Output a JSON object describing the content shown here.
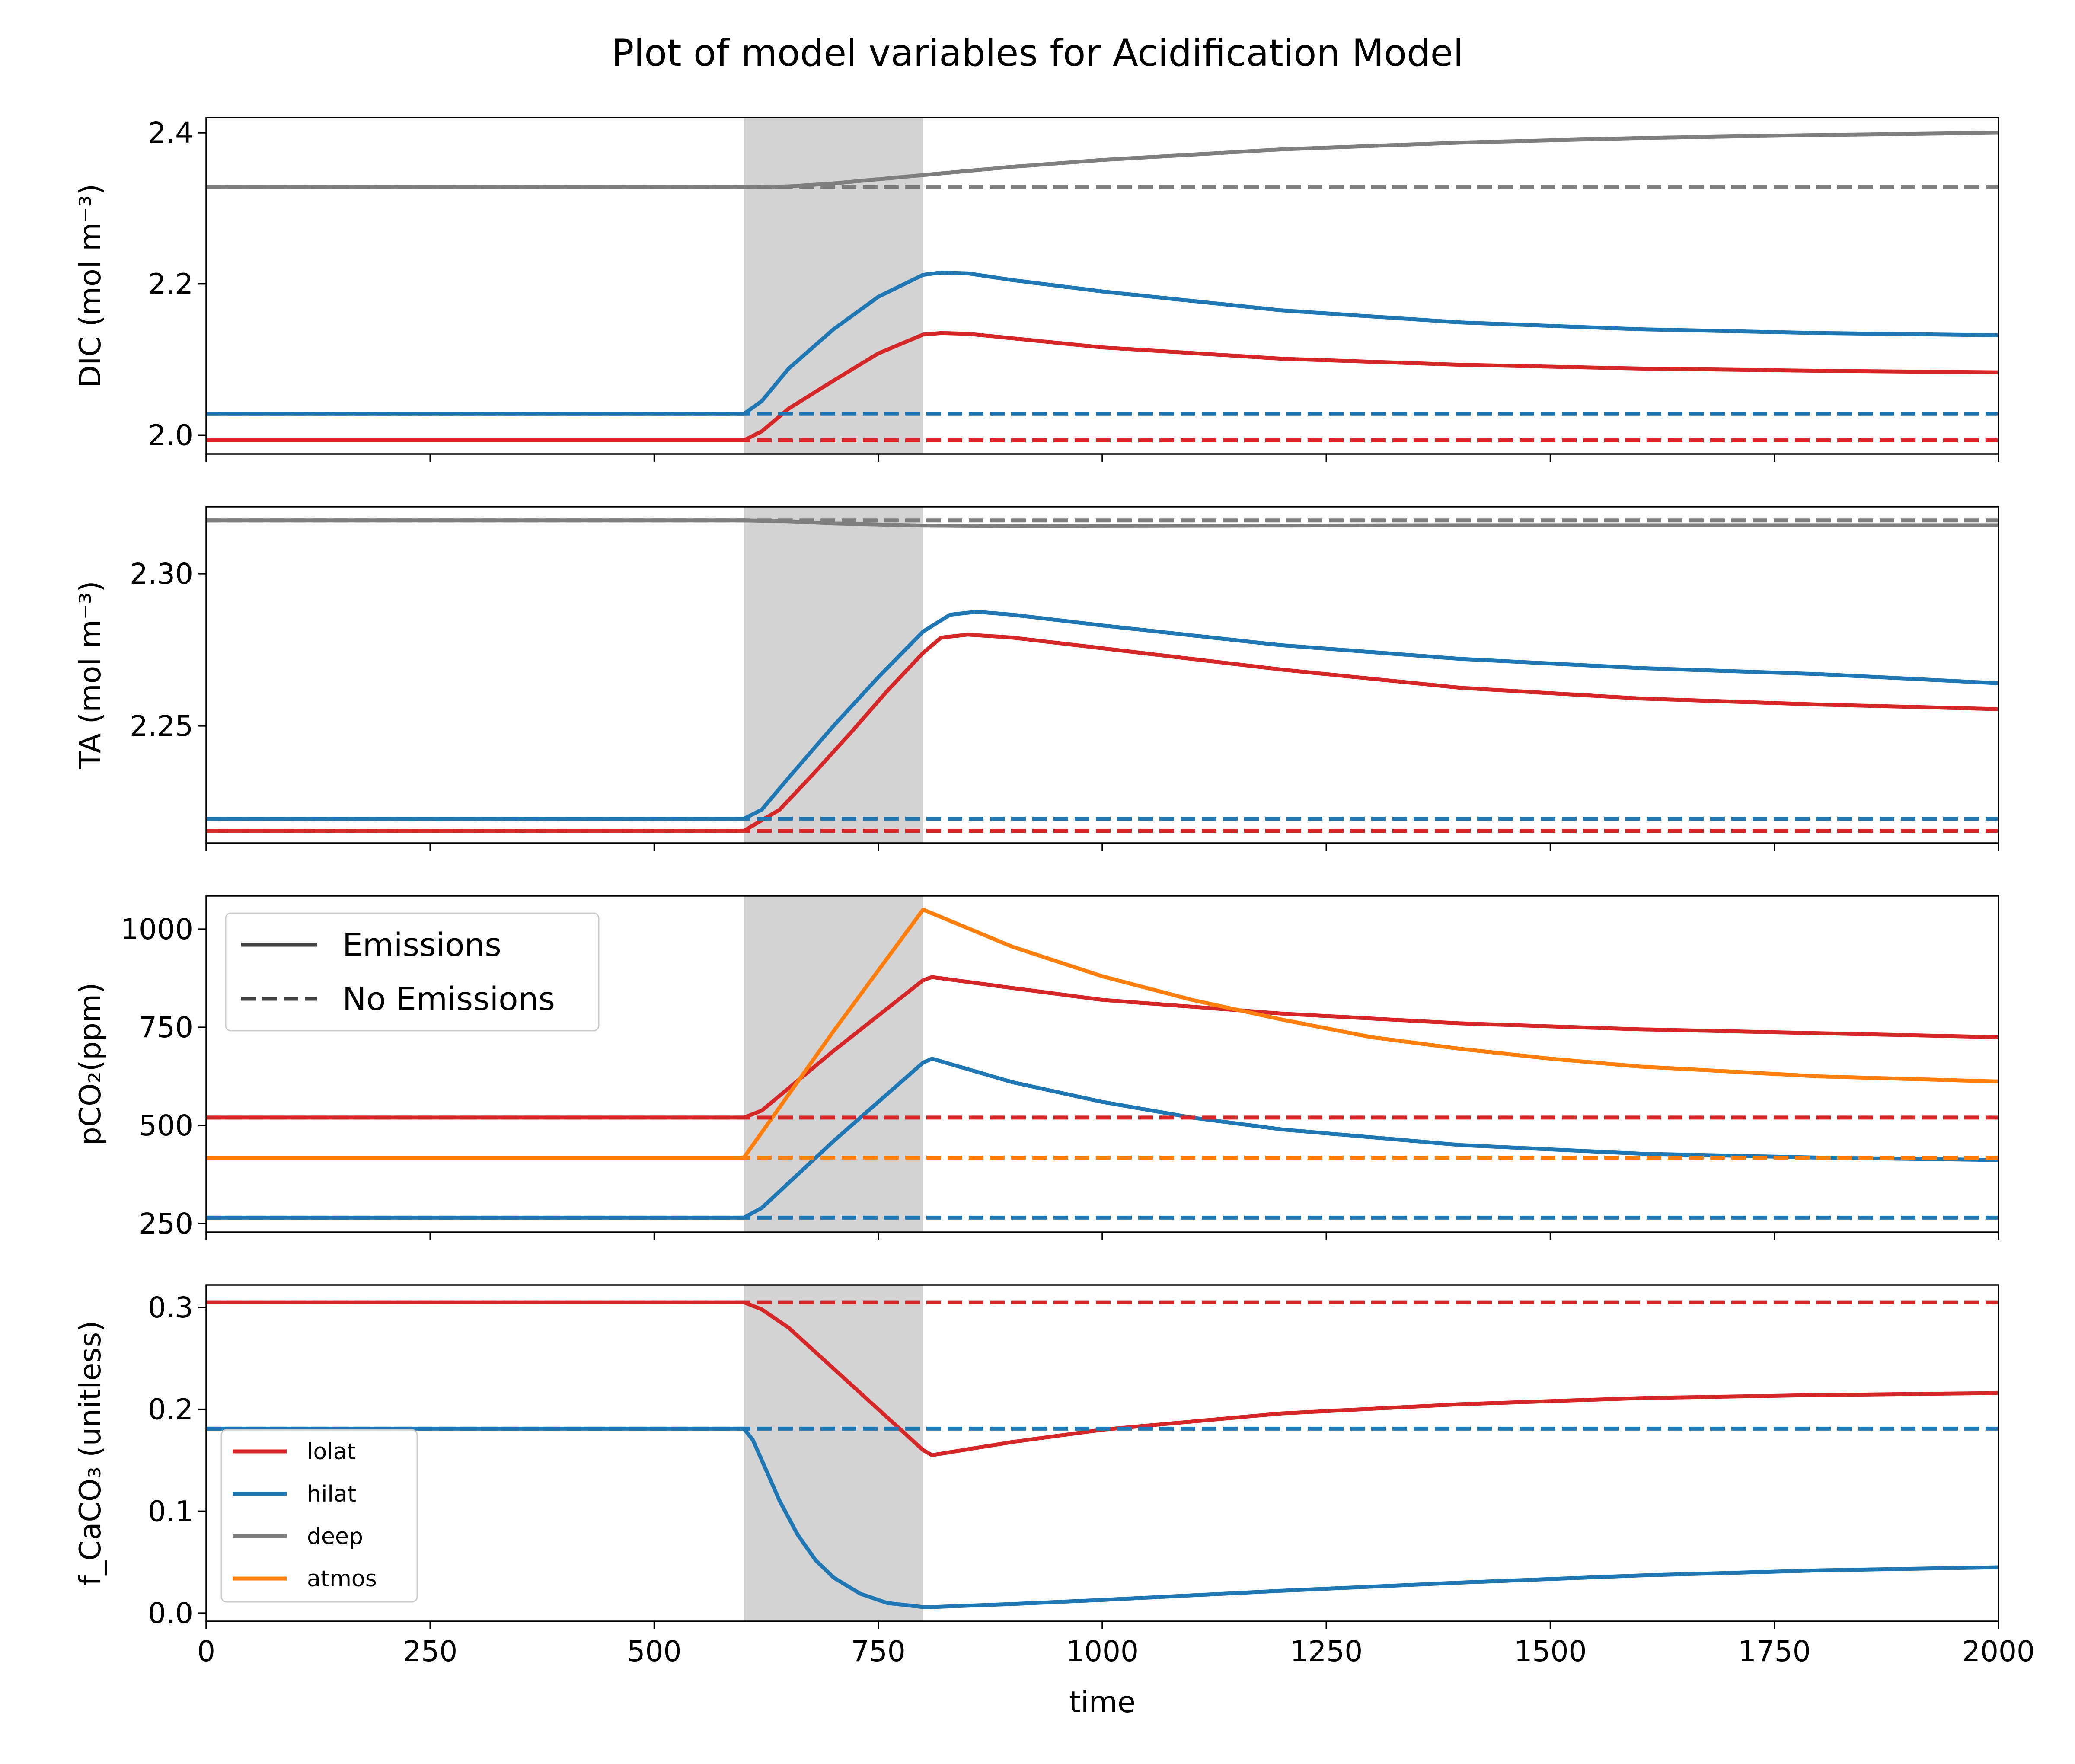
{
  "title": "Plot of model variables for Acidification Model",
  "colors": {
    "lolat": "#d62728",
    "hilat": "#1f77b4",
    "deep": "#7f7f7f",
    "atmos": "#ff7f0e",
    "emission_window": "#d3d3d3",
    "legend_style_line": "#444444"
  },
  "style_legend": {
    "items": [
      {
        "label": "Emissions",
        "dash": "solid"
      },
      {
        "label": "No Emissions",
        "dash": "dashed"
      }
    ],
    "placement": "upper-left",
    "panel": 2
  },
  "series_legend": {
    "items": [
      {
        "label": "lolat",
        "color": "#d62728"
      },
      {
        "label": "hilat",
        "color": "#1f77b4"
      },
      {
        "label": "deep",
        "color": "#7f7f7f"
      },
      {
        "label": "atmos",
        "color": "#ff7f0e"
      }
    ],
    "placement": "lower-left",
    "panel": 3
  },
  "chart_data": [
    {
      "type": "line",
      "ylabel": "DIC (mol m⁻³)",
      "xlim": [
        0,
        2000
      ],
      "ylim": [
        1.975,
        2.42
      ],
      "yticks": [
        2.0,
        2.2,
        2.4
      ],
      "ytick_labels": [
        "2.0",
        "2.2",
        "2.4"
      ],
      "shaded_x": [
        600,
        800
      ],
      "series": [
        {
          "id": "deep",
          "x": [
            0,
            600,
            650,
            700,
            800,
            900,
            1000,
            1200,
            1400,
            1600,
            1800,
            2000
          ],
          "values": [
            2.328,
            2.328,
            2.329,
            2.333,
            2.344,
            2.355,
            2.364,
            2.378,
            2.387,
            2.393,
            2.397,
            2.4
          ]
        },
        {
          "id": "hilat",
          "x": [
            0,
            600,
            620,
            650,
            700,
            750,
            800,
            820,
            850,
            900,
            1000,
            1200,
            1400,
            1600,
            1800,
            2000
          ],
          "values": [
            2.028,
            2.028,
            2.045,
            2.088,
            2.14,
            2.183,
            2.212,
            2.215,
            2.214,
            2.205,
            2.19,
            2.165,
            2.149,
            2.14,
            2.135,
            2.132
          ]
        },
        {
          "id": "lolat",
          "x": [
            0,
            600,
            620,
            650,
            700,
            750,
            800,
            820,
            850,
            900,
            1000,
            1200,
            1400,
            1600,
            1800,
            2000
          ],
          "values": [
            1.993,
            1.993,
            2.005,
            2.035,
            2.072,
            2.108,
            2.133,
            2.135,
            2.134,
            2.128,
            2.116,
            2.101,
            2.093,
            2.088,
            2.085,
            2.083
          ]
        },
        {
          "id": "deep",
          "dash": "dashed",
          "x": [
            0,
            2000
          ],
          "values": [
            2.328,
            2.328
          ]
        },
        {
          "id": "hilat",
          "dash": "dashed",
          "x": [
            0,
            2000
          ],
          "values": [
            2.028,
            2.028
          ]
        },
        {
          "id": "lolat",
          "dash": "dashed",
          "x": [
            0,
            2000
          ],
          "values": [
            1.993,
            1.993
          ]
        }
      ]
    },
    {
      "type": "line",
      "ylabel": "TA (mol m⁻³)",
      "xlim": [
        0,
        2000
      ],
      "ylim": [
        2.2115,
        2.322
      ],
      "yticks": [
        2.25,
        2.3
      ],
      "ytick_labels": [
        "2.25",
        "2.30"
      ],
      "shaded_x": [
        600,
        800
      ],
      "series": [
        {
          "id": "deep",
          "x": [
            0,
            600,
            650,
            700,
            800,
            900,
            1000,
            1200,
            1400,
            1600,
            1800,
            2000
          ],
          "values": [
            2.3175,
            2.3175,
            2.3172,
            2.3165,
            2.3158,
            2.3156,
            2.3157,
            2.3158,
            2.3159,
            2.3159,
            2.3159,
            2.3159
          ]
        },
        {
          "id": "hilat",
          "x": [
            0,
            600,
            620,
            650,
            700,
            750,
            800,
            830,
            860,
            900,
            1000,
            1200,
            1400,
            1600,
            1800,
            2000
          ],
          "values": [
            2.2195,
            2.2195,
            2.2225,
            2.233,
            2.25,
            2.266,
            2.281,
            2.2865,
            2.2875,
            2.2865,
            2.283,
            2.2765,
            2.272,
            2.269,
            2.267,
            2.264
          ]
        },
        {
          "id": "lolat",
          "x": [
            0,
            600,
            640,
            680,
            720,
            760,
            800,
            820,
            850,
            900,
            1000,
            1200,
            1400,
            1600,
            1800,
            2000
          ],
          "values": [
            2.2155,
            2.2155,
            2.2225,
            2.235,
            2.248,
            2.2615,
            2.274,
            2.279,
            2.28,
            2.279,
            2.2755,
            2.2685,
            2.2625,
            2.259,
            2.257,
            2.2555
          ]
        },
        {
          "id": "deep",
          "dash": "dashed",
          "x": [
            0,
            2000
          ],
          "values": [
            2.3175,
            2.3175
          ]
        },
        {
          "id": "hilat",
          "dash": "dashed",
          "x": [
            0,
            2000
          ],
          "values": [
            2.2195,
            2.2195
          ]
        },
        {
          "id": "lolat",
          "dash": "dashed",
          "x": [
            0,
            2000
          ],
          "values": [
            2.2155,
            2.2155
          ]
        }
      ]
    },
    {
      "type": "line",
      "ylabel": "pCO₂(ppm)",
      "xlim": [
        0,
        2000
      ],
      "ylim": [
        228,
        1085
      ],
      "yticks": [
        250,
        500,
        750,
        1000
      ],
      "ytick_labels": [
        "250",
        "500",
        "750",
        "1000"
      ],
      "shaded_x": [
        600,
        800
      ],
      "series": [
        {
          "id": "lolat",
          "x": [
            0,
            600,
            620,
            700,
            800,
            810,
            900,
            1000,
            1200,
            1400,
            1600,
            1800,
            2000
          ],
          "values": [
            520,
            520,
            538,
            690,
            870,
            878,
            850,
            820,
            785,
            760,
            745,
            735,
            725
          ]
        },
        {
          "id": "atmos",
          "x": [
            0,
            600,
            700,
            800,
            900,
            1000,
            1100,
            1200,
            1300,
            1400,
            1500,
            1600,
            1800,
            2000
          ],
          "values": [
            418,
            418,
            740,
            1050,
            955,
            880,
            820,
            770,
            725,
            695,
            670,
            650,
            625,
            612
          ]
        },
        {
          "id": "hilat",
          "x": [
            0,
            600,
            620,
            700,
            800,
            810,
            900,
            1000,
            1100,
            1200,
            1400,
            1600,
            1800,
            2000
          ],
          "values": [
            265,
            265,
            290,
            460,
            660,
            670,
            610,
            560,
            520,
            490,
            450,
            428,
            418,
            412
          ]
        },
        {
          "id": "lolat",
          "dash": "dashed",
          "x": [
            0,
            2000
          ],
          "values": [
            520,
            520
          ]
        },
        {
          "id": "atmos",
          "dash": "dashed",
          "x": [
            0,
            2000
          ],
          "values": [
            418,
            418
          ]
        },
        {
          "id": "hilat",
          "dash": "dashed",
          "x": [
            0,
            2000
          ],
          "values": [
            265,
            265
          ]
        }
      ]
    },
    {
      "type": "line",
      "ylabel": "f_CaCO₃ (unitless)",
      "xlim": [
        0,
        2000
      ],
      "xlabel": "time",
      "xticks": [
        0,
        250,
        500,
        750,
        1000,
        1250,
        1500,
        1750,
        2000
      ],
      "xtick_labels": [
        "0",
        "250",
        "500",
        "750",
        "1000",
        "1250",
        "1500",
        "1750",
        "2000"
      ],
      "ylim": [
        -0.008,
        0.322
      ],
      "yticks": [
        0.0,
        0.1,
        0.2,
        0.3
      ],
      "ytick_labels": [
        "0.0",
        "0.1",
        "0.2",
        "0.3"
      ],
      "shaded_x": [
        600,
        800
      ],
      "series": [
        {
          "id": "lolat",
          "x": [
            0,
            600,
            620,
            650,
            700,
            750,
            800,
            810,
            900,
            1000,
            1200,
            1400,
            1600,
            1800,
            2000
          ],
          "values": [
            0.305,
            0.305,
            0.298,
            0.28,
            0.24,
            0.2,
            0.16,
            0.155,
            0.168,
            0.18,
            0.196,
            0.205,
            0.211,
            0.214,
            0.216
          ]
        },
        {
          "id": "hilat",
          "x": [
            0,
            600,
            610,
            620,
            640,
            660,
            680,
            700,
            730,
            760,
            800,
            810,
            900,
            1000,
            1200,
            1400,
            1600,
            1800,
            2000
          ],
          "values": [
            0.181,
            0.181,
            0.17,
            0.15,
            0.11,
            0.077,
            0.052,
            0.035,
            0.019,
            0.01,
            0.006,
            0.006,
            0.009,
            0.013,
            0.022,
            0.03,
            0.037,
            0.042,
            0.045
          ]
        },
        {
          "id": "lolat",
          "dash": "dashed",
          "x": [
            0,
            2000
          ],
          "values": [
            0.305,
            0.305
          ]
        },
        {
          "id": "hilat",
          "dash": "dashed",
          "x": [
            0,
            2000
          ],
          "values": [
            0.181,
            0.181
          ]
        }
      ]
    }
  ]
}
